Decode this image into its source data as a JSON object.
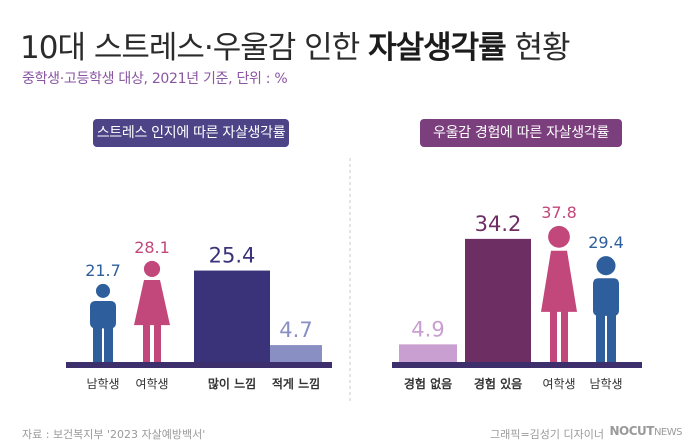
{
  "title_part1": "10대 스트레스·우울감 인한 ",
  "title_part2": "자살생각률",
  "title_part3": " 현황",
  "subtitle": "중학생·고등학생 대상, 2021년 기준, 단위 : %",
  "footer": {
    "source": "자료 : 보건복지부 '2023 자살예방백서'",
    "credit": "그래픽=김성기 디자이너",
    "brand_main": "NOCUT",
    "brand_sub": "NEWS"
  },
  "colors": {
    "male": "#2e5f9c",
    "female": "#c2477b",
    "stress_high": "#3b3379",
    "stress_low": "#8a8fc3",
    "depr_no": "#c99ed0",
    "depr_yes": "#6c2e63",
    "baseline": "#3c2f6b"
  },
  "chart_data": [
    {
      "type": "bar",
      "title": "스트레스 인지에 따른 자살생각률",
      "categories": [
        "남학생",
        "여학생",
        "많이 느낌",
        "적게 느낌"
      ],
      "values": [
        21.7,
        28.1,
        25.4,
        4.7
      ],
      "marks": [
        "male-icon",
        "female-icon",
        "bar",
        "bar"
      ],
      "ylim": [
        0,
        40
      ]
    },
    {
      "type": "bar",
      "title": "우울감 경험에 따른 자살생각률",
      "categories": [
        "경험 없음",
        "경험 있음",
        "여학생",
        "남학생"
      ],
      "values": [
        4.9,
        34.2,
        37.8,
        29.4
      ],
      "marks": [
        "bar",
        "bar",
        "female-icon",
        "male-icon"
      ],
      "ylim": [
        0,
        40
      ]
    }
  ]
}
